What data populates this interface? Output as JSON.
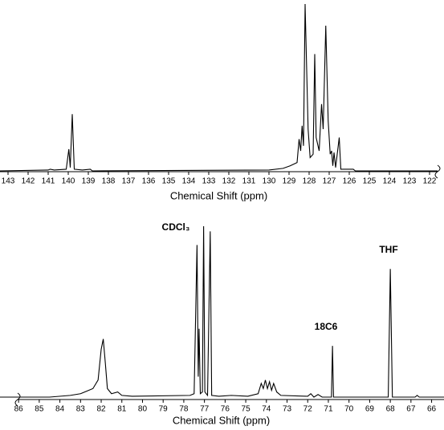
{
  "chart_data": [
    {
      "type": "line",
      "xlabel": "Chemical Shift (ppm)",
      "color": "#000000",
      "xlim": [
        143.4,
        121.6
      ],
      "ylim": [
        0,
        100
      ],
      "xticks": [
        143,
        142,
        141,
        140,
        139,
        138,
        137,
        136,
        135,
        134,
        133,
        132,
        131,
        130,
        129,
        128,
        127,
        126,
        125,
        124,
        123,
        122
      ],
      "x": [
        143.4,
        141.0,
        140.9,
        140.7,
        140.1,
        139.97,
        139.9,
        139.8,
        139.7,
        139.3,
        138.9,
        138.8,
        130,
        129.3,
        128.95,
        128.6,
        128.5,
        128.42,
        128.35,
        128.28,
        128.2,
        128.05,
        127.95,
        127.8,
        127.72,
        127.65,
        127.5,
        127.38,
        127.3,
        127.17,
        127.05,
        126.95,
        126.88,
        126.82,
        126.76,
        126.68,
        126.5,
        126.42,
        125.8,
        125.7,
        121.6
      ],
      "values": [
        0,
        0.5,
        1,
        0.5,
        1,
        13,
        2,
        34,
        1,
        0.5,
        1,
        0,
        0.5,
        1.5,
        3,
        5,
        19,
        12,
        27,
        15,
        100,
        25,
        8,
        10,
        70,
        20,
        12,
        40,
        25,
        87,
        30,
        10,
        12,
        3,
        11,
        2,
        20,
        1,
        1,
        0,
        0
      ]
    },
    {
      "type": "line",
      "xlabel": "Chemical Shift (ppm)",
      "color": "#000000",
      "xlim": [
        86.9,
        65.4
      ],
      "ylim": [
        0,
        100
      ],
      "xticks": [
        86,
        85,
        84,
        83,
        82,
        81,
        80,
        79,
        78,
        77,
        76,
        75,
        74,
        73,
        72,
        71,
        70,
        69,
        68,
        67,
        66
      ],
      "annotations": [
        "CDCl₃",
        "18C6",
        "THF"
      ],
      "x": [
        86.9,
        84.5,
        83.5,
        83.0,
        82.8,
        82.4,
        82.15,
        82.0,
        81.9,
        81.8,
        81.7,
        81.5,
        81.2,
        81.0,
        80.5,
        77.7,
        77.5,
        77.36,
        77.3,
        77.26,
        77.2,
        77.1,
        77.04,
        76.98,
        76.85,
        76.72,
        76.65,
        76.3,
        75.7,
        74.9,
        74.4,
        74.25,
        74.15,
        74.05,
        73.95,
        73.85,
        73.75,
        73.65,
        73.5,
        73.3,
        72.0,
        71.85,
        71.7,
        71.5,
        71.3,
        70.85,
        70.8,
        70.75,
        68.1,
        68.0,
        67.9,
        66.8,
        66.7,
        66.6,
        65.4
      ],
      "values": [
        0,
        0,
        1,
        2,
        3,
        5,
        10,
        28,
        34,
        20,
        5,
        2,
        3,
        1,
        0.5,
        1,
        2,
        89,
        12,
        40,
        2,
        3,
        100,
        3,
        1,
        97,
        1,
        0.5,
        1,
        0.5,
        2,
        8,
        5,
        10,
        5,
        9,
        4,
        8,
        3,
        1,
        0.5,
        2,
        0,
        1.5,
        0,
        0,
        30,
        0,
        0,
        75,
        0,
        0,
        1,
        0,
        0
      ]
    }
  ]
}
